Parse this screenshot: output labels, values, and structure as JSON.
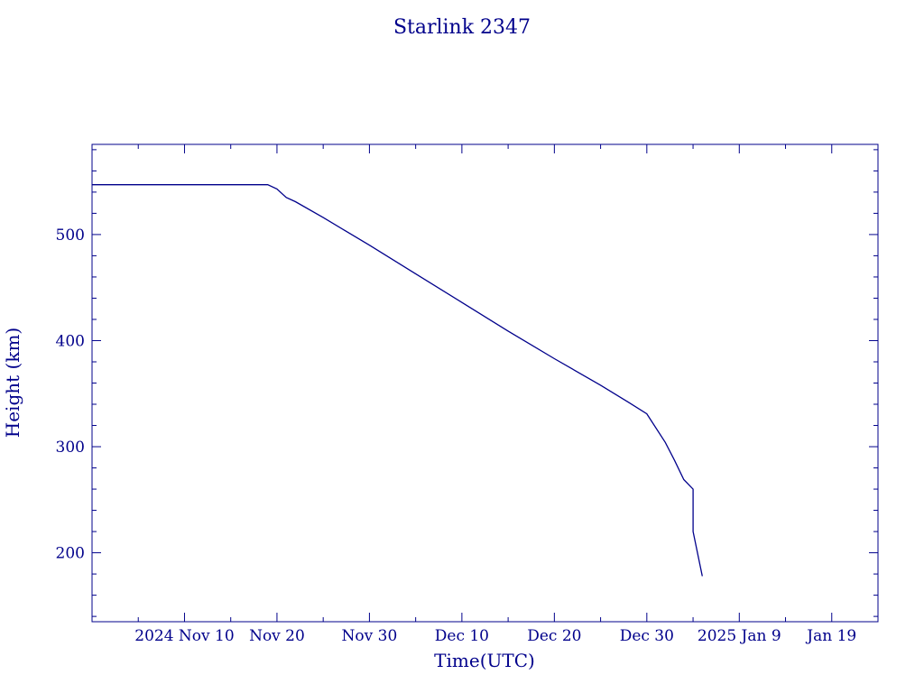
{
  "colors": {
    "ink": "#00008b",
    "background": "#ffffff"
  },
  "chart_data": {
    "type": "line",
    "title": "Starlink 2347",
    "xlabel": "Time(UTC)",
    "ylabel": "Height (km)",
    "xlim": [
      "2024-10-31",
      "2025-01-24"
    ],
    "ylim": [
      135,
      585
    ],
    "x_tick_labels": [
      {
        "date": "2024-11-10",
        "label": "2024 Nov 10"
      },
      {
        "date": "2024-11-20",
        "label": "Nov 20"
      },
      {
        "date": "2024-11-30",
        "label": "Nov 30"
      },
      {
        "date": "2024-12-10",
        "label": "Dec 10"
      },
      {
        "date": "2024-12-20",
        "label": "Dec 20"
      },
      {
        "date": "2024-12-30",
        "label": "Dec 30"
      },
      {
        "date": "2025-01-09",
        "label": "2025 Jan  9"
      },
      {
        "date": "2025-01-19",
        "label": "Jan 19"
      }
    ],
    "y_ticks": [
      200,
      300,
      400,
      500
    ],
    "grid": false,
    "series": [
      {
        "points": [
          {
            "x": "2024-10-31",
            "y": 547
          },
          {
            "x": "2024-11-09",
            "y": 547
          },
          {
            "x": "2024-11-19",
            "y": 547
          },
          {
            "x": "2024-11-20",
            "y": 543
          },
          {
            "x": "2024-11-21",
            "y": 535
          },
          {
            "x": "2024-11-22",
            "y": 531
          },
          {
            "x": "2024-11-25",
            "y": 516
          },
          {
            "x": "2024-11-30",
            "y": 490
          },
          {
            "x": "2024-12-05",
            "y": 463
          },
          {
            "x": "2024-12-10",
            "y": 436
          },
          {
            "x": "2024-12-15",
            "y": 409
          },
          {
            "x": "2024-12-20",
            "y": 383
          },
          {
            "x": "2024-12-25",
            "y": 358
          },
          {
            "x": "2024-12-28",
            "y": 342
          },
          {
            "x": "2024-12-30",
            "y": 331
          },
          {
            "x": "2025-01-01",
            "y": 304
          },
          {
            "x": "2025-01-02",
            "y": 287
          },
          {
            "x": "2025-01-03",
            "y": 269
          },
          {
            "x": "2025-01-04",
            "y": 260
          },
          {
            "x": "2025-01-04",
            "y": 220
          },
          {
            "x": "2025-01-05",
            "y": 178
          }
        ]
      }
    ]
  }
}
